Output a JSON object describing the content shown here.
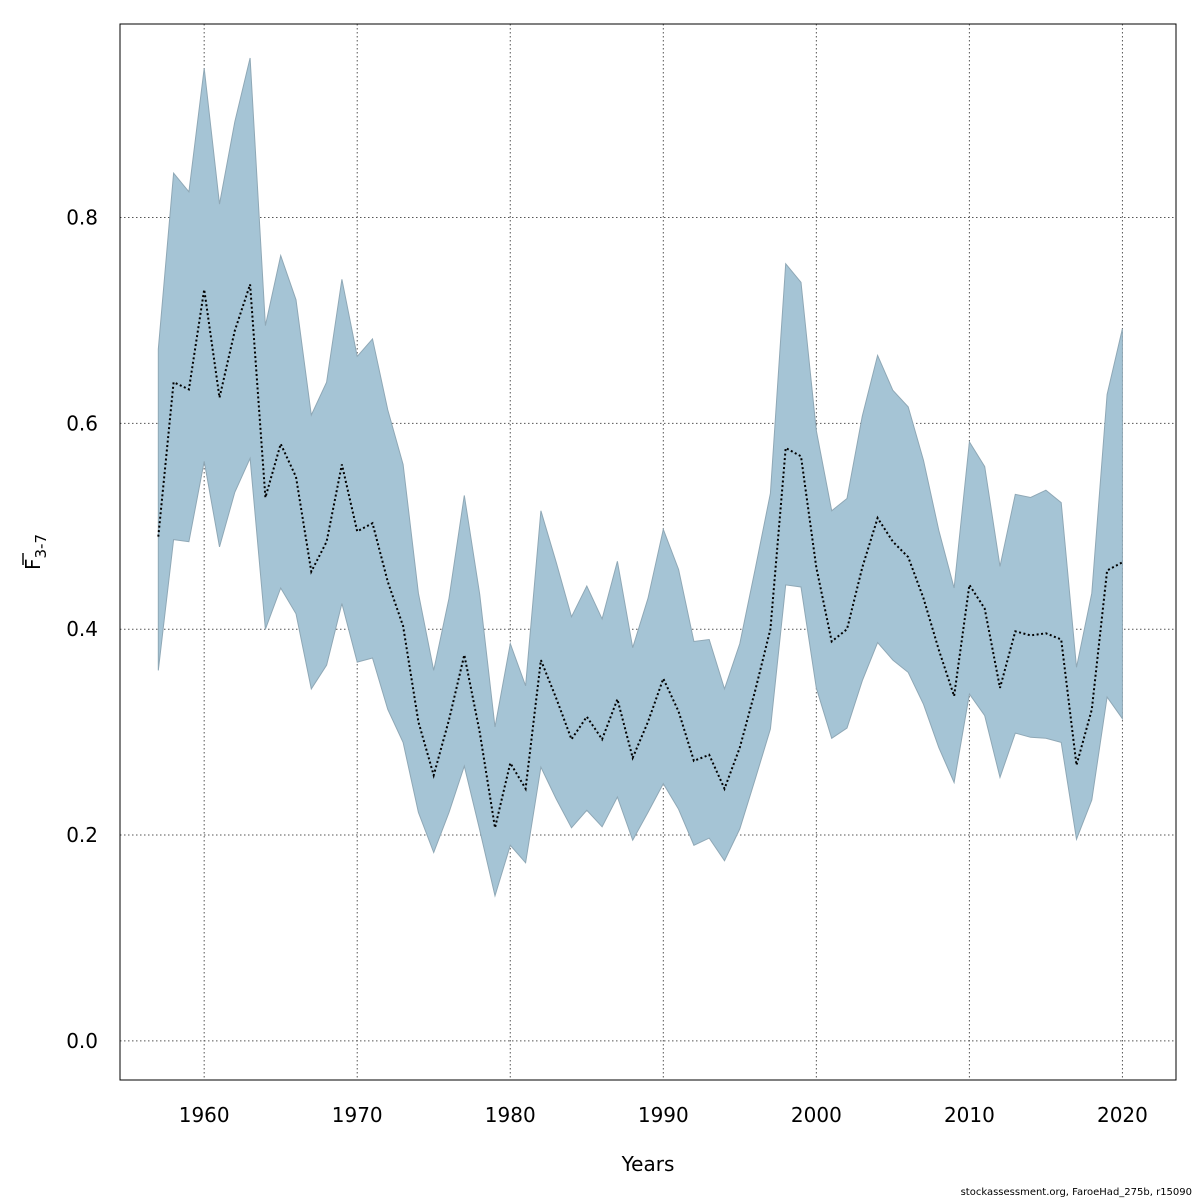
{
  "colors": {
    "band": "#a5c4d5",
    "band_edge": "#8fa8b6",
    "line": "#000000",
    "grid": "#555555",
    "axis": "#000000"
  },
  "footer": "stockassessment.org, FaroeHad_275b, r15090",
  "chart_data": {
    "type": "area",
    "title": "",
    "xlabel": "Years",
    "ylabel": "F3-7",
    "ylabel_main": "F",
    "ylabel_sub": "3-7",
    "xlim": [
      1954.5,
      2023.5
    ],
    "ylim": [
      -0.038,
      0.988
    ],
    "x_ticks": [
      1960,
      1970,
      1980,
      1990,
      2000,
      2010,
      2020
    ],
    "x_tick_labels": [
      "1960",
      "1970",
      "1980",
      "1990",
      "2000",
      "2010",
      "2020"
    ],
    "y_ticks": [
      0.0,
      0.2,
      0.4,
      0.6,
      0.8
    ],
    "y_tick_labels": [
      "0.0",
      "0.2",
      "0.4",
      "0.6",
      "0.8"
    ],
    "grid": true,
    "x": [
      1957,
      1958,
      1959,
      1960,
      1961,
      1962,
      1963,
      1964,
      1965,
      1966,
      1967,
      1968,
      1969,
      1970,
      1971,
      1972,
      1973,
      1974,
      1975,
      1976,
      1977,
      1978,
      1979,
      1980,
      1981,
      1982,
      1983,
      1984,
      1985,
      1986,
      1987,
      1988,
      1989,
      1990,
      1991,
      1992,
      1993,
      1994,
      1995,
      1996,
      1997,
      1998,
      1999,
      2000,
      2001,
      2002,
      2003,
      2004,
      2005,
      2006,
      2007,
      2008,
      2009,
      2010,
      2011,
      2012,
      2013,
      2014,
      2015,
      2016,
      2017,
      2018,
      2019,
      2020
    ],
    "series": [
      {
        "role": "estimate",
        "style": "dotted",
        "values": [
          0.49,
          0.64,
          0.633,
          0.73,
          0.625,
          0.69,
          0.735,
          0.528,
          0.58,
          0.548,
          0.456,
          0.485,
          0.56,
          0.495,
          0.503,
          0.446,
          0.403,
          0.31,
          0.258,
          0.312,
          0.375,
          0.3,
          0.207,
          0.27,
          0.245,
          0.37,
          0.333,
          0.293,
          0.315,
          0.293,
          0.332,
          0.275,
          0.31,
          0.352,
          0.32,
          0.272,
          0.278,
          0.245,
          0.285,
          0.34,
          0.4,
          0.576,
          0.568,
          0.46,
          0.388,
          0.4,
          0.46,
          0.508,
          0.485,
          0.47,
          0.43,
          0.38,
          0.335,
          0.443,
          0.42,
          0.343,
          0.398,
          0.394,
          0.396,
          0.39,
          0.268,
          0.322,
          0.457,
          0.465
        ]
      },
      {
        "role": "upper",
        "values": [
          0.672,
          0.843,
          0.825,
          0.945,
          0.813,
          0.893,
          0.955,
          0.695,
          0.763,
          0.72,
          0.608,
          0.64,
          0.74,
          0.665,
          0.682,
          0.613,
          0.56,
          0.435,
          0.36,
          0.43,
          0.53,
          0.434,
          0.305,
          0.386,
          0.345,
          0.515,
          0.465,
          0.412,
          0.442,
          0.41,
          0.466,
          0.382,
          0.43,
          0.497,
          0.458,
          0.388,
          0.39,
          0.342,
          0.386,
          0.458,
          0.532,
          0.755,
          0.737,
          0.593,
          0.515,
          0.527,
          0.607,
          0.666,
          0.632,
          0.616,
          0.564,
          0.496,
          0.44,
          0.582,
          0.558,
          0.461,
          0.531,
          0.528,
          0.535,
          0.523,
          0.363,
          0.435,
          0.628,
          0.692
        ]
      },
      {
        "role": "lower",
        "values": [
          0.36,
          0.487,
          0.485,
          0.563,
          0.48,
          0.533,
          0.566,
          0.4,
          0.44,
          0.415,
          0.342,
          0.365,
          0.425,
          0.368,
          0.372,
          0.322,
          0.29,
          0.222,
          0.183,
          0.222,
          0.267,
          0.205,
          0.141,
          0.19,
          0.173,
          0.266,
          0.235,
          0.207,
          0.224,
          0.208,
          0.237,
          0.195,
          0.222,
          0.25,
          0.225,
          0.19,
          0.197,
          0.175,
          0.206,
          0.254,
          0.303,
          0.443,
          0.441,
          0.343,
          0.294,
          0.304,
          0.35,
          0.387,
          0.37,
          0.358,
          0.327,
          0.285,
          0.251,
          0.337,
          0.316,
          0.256,
          0.299,
          0.295,
          0.294,
          0.29,
          0.196,
          0.234,
          0.334,
          0.313
        ]
      }
    ]
  }
}
